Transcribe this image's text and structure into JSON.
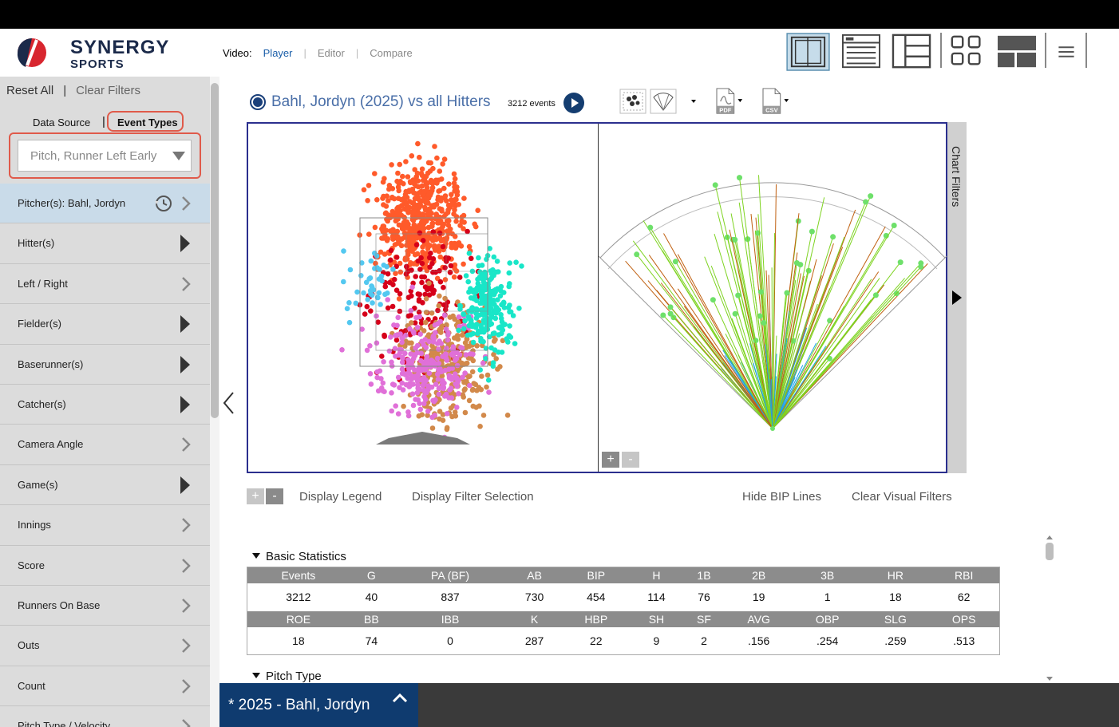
{
  "header": {
    "brand_line1": "SYNERGY",
    "brand_line2": "SPORTS",
    "video_label": "Video:",
    "video_tabs": [
      "Player",
      "Editor",
      "Compare"
    ]
  },
  "sidebar": {
    "reset_all": "Reset All",
    "separator": "|",
    "clear_filters": "Clear Filters",
    "tab_data_source": "Data Source",
    "tab_event_types": "Event Types",
    "event_type_value": "Pitch, Runner Left Early",
    "items": [
      {
        "label": "Pitcher(s): Bahl, Jordyn",
        "icon": "chevron"
      },
      {
        "label": "Hitter(s)",
        "icon": "triangle"
      },
      {
        "label": "Left / Right",
        "icon": "chevron"
      },
      {
        "label": "Fielder(s)",
        "icon": "triangle"
      },
      {
        "label": "Baserunner(s)",
        "icon": "triangle"
      },
      {
        "label": "Catcher(s)",
        "icon": "triangle"
      },
      {
        "label": "Camera Angle",
        "icon": "chevron"
      },
      {
        "label": "Game(s)",
        "icon": "triangle"
      },
      {
        "label": "Innings",
        "icon": "chevron"
      },
      {
        "label": "Score",
        "icon": "chevron"
      },
      {
        "label": "Runners On Base",
        "icon": "chevron"
      },
      {
        "label": "Outs",
        "icon": "chevron"
      },
      {
        "label": "Count",
        "icon": "chevron"
      },
      {
        "label": "Pitch Type / Velocity",
        "icon": "chevron"
      }
    ]
  },
  "chart": {
    "title": "Bahl, Jordyn (2025) vs all Hitters",
    "events": "3212 events",
    "pdf_label": "PDF",
    "csv_label": "CSV",
    "chart_filters": "Chart Filters",
    "zoom_plus": "+",
    "zoom_minus": "-",
    "display_legend": "Display Legend",
    "display_filter_selection": "Display Filter Selection",
    "hide_bip_lines": "Hide BIP Lines",
    "clear_visual_filters": "Clear Visual Filters"
  },
  "colors": {
    "accent": "#1a5ea8",
    "highlight": "#e05a4a",
    "nav_dark": "#0f3b6f",
    "pitch_red": "#ff5a2a",
    "pitch_dark_red": "#d6001a",
    "pitch_teal": "#19e6c8",
    "pitch_pink": "#e070d8",
    "pitch_tan": "#d2894a",
    "pitch_cyan": "#53c8f0",
    "spray_green": "#7ed321",
    "spray_orange": "#c06010",
    "spray_blue": "#1ea0e8",
    "spray_point": "#6ee06a"
  },
  "basic_statistics": {
    "title": "Basic Statistics",
    "rows": [
      {
        "headers": [
          "Events",
          "G",
          "PA (BF)",
          "AB",
          "BIP",
          "H",
          "1B",
          "2B",
          "3B",
          "HR",
          "RBI"
        ],
        "values": [
          "3212",
          "40",
          "837",
          "730",
          "454",
          "114",
          "76",
          "19",
          "1",
          "18",
          "62"
        ]
      },
      {
        "headers": [
          "ROE",
          "BB",
          "IBB",
          "K",
          "HBP",
          "SH",
          "SF",
          "AVG",
          "OBP",
          "SLG",
          "OPS"
        ],
        "values": [
          "18",
          "74",
          "0",
          "287",
          "22",
          "9",
          "2",
          ".156",
          ".254",
          ".259",
          ".513"
        ]
      }
    ]
  },
  "pitch_type_title": "Pitch Type",
  "bottom_tab": "* 2025 - Bahl, Jordyn"
}
